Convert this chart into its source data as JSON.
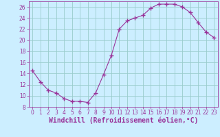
{
  "x": [
    0,
    1,
    2,
    3,
    4,
    5,
    6,
    7,
    8,
    9,
    10,
    11,
    12,
    13,
    14,
    15,
    16,
    17,
    18,
    19,
    20,
    21,
    22,
    23
  ],
  "y": [
    14.5,
    12.5,
    11.0,
    10.5,
    9.5,
    9.0,
    9.0,
    8.8,
    10.5,
    13.8,
    17.3,
    22.0,
    23.5,
    24.0,
    24.5,
    25.8,
    26.5,
    26.5,
    26.5,
    26.0,
    25.0,
    23.2,
    21.5,
    20.5
  ],
  "line_color": "#993399",
  "marker": "+",
  "marker_size": 4,
  "bg_color": "#cceeff",
  "grid_color": "#99cccc",
  "xlabel": "Windchill (Refroidissement éolien,°C)",
  "xlabel_color": "#993399",
  "ylim": [
    8,
    27
  ],
  "xlim": [
    -0.5,
    23.5
  ],
  "yticks": [
    8,
    10,
    12,
    14,
    16,
    18,
    20,
    22,
    24,
    26
  ],
  "xticks": [
    0,
    1,
    2,
    3,
    4,
    5,
    6,
    7,
    8,
    9,
    10,
    11,
    12,
    13,
    14,
    15,
    16,
    17,
    18,
    19,
    20,
    21,
    22,
    23
  ],
  "tick_color": "#993399",
  "tick_fontsize": 5.5,
  "xlabel_fontsize": 7.0,
  "spine_color": "#993399",
  "marker_linewidth": 1.0
}
